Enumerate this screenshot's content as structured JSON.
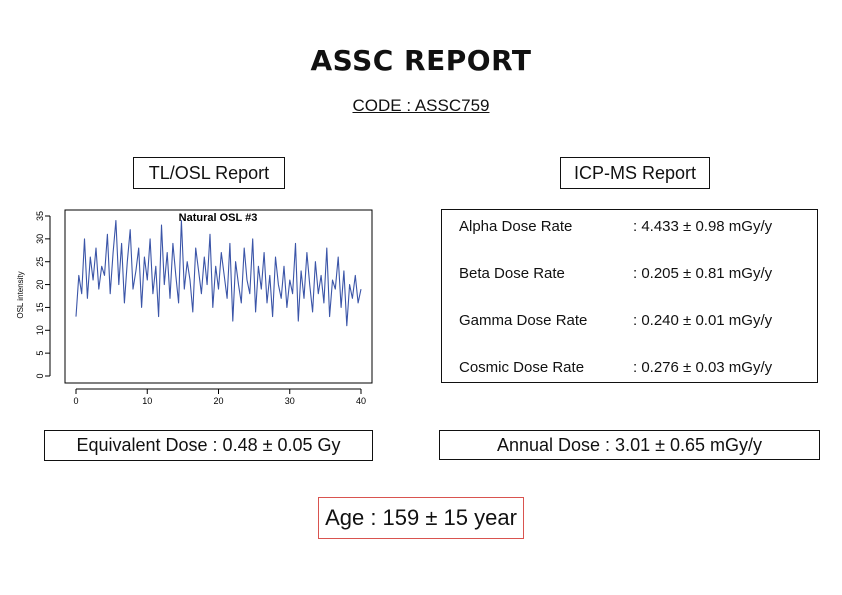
{
  "report": {
    "title": "ASSC REPORT",
    "code": "CODE : ASSC759"
  },
  "tl_osl": {
    "header": "TL/OSL Report",
    "equivalent_dose": "Equivalent Dose : 0.48 ± 0.05 Gy"
  },
  "icp_ms": {
    "header": "ICP-MS Report",
    "rows": [
      {
        "label": "Alpha Dose Rate",
        "value": ": 4.433 ± 0.98 mGy/y"
      },
      {
        "label": "Beta Dose Rate",
        "value": ": 0.205 ± 0.81 mGy/y"
      },
      {
        "label": "Gamma Dose Rate",
        "value": ": 0.240 ± 0.01 mGy/y"
      },
      {
        "label": "Cosmic Dose Rate",
        "value": ": 0.276 ± 0.03 mGy/y"
      }
    ],
    "annual_dose": "Annual Dose : 3.01 ± 0.65 mGy/y"
  },
  "age": "Age : 159 ± 15 year",
  "colors": {
    "line": "#3b55a8",
    "age_border": "#d9534f"
  },
  "chart_data": {
    "type": "line",
    "title": "Natural OSL #3",
    "xlabel": "",
    "ylabel": "OSL intensity",
    "xlim": [
      0,
      40
    ],
    "ylim": [
      0,
      35
    ],
    "xticks": [
      0,
      10,
      20,
      30,
      40
    ],
    "yticks": [
      0,
      5,
      10,
      15,
      20,
      25,
      30,
      35
    ],
    "grid": false,
    "series": [
      {
        "x": [
          0.0,
          0.4,
          0.8,
          1.2,
          1.6,
          2.0,
          2.4,
          2.8,
          3.2,
          3.6,
          4.0,
          4.4,
          4.8,
          5.2,
          5.6,
          6.0,
          6.4,
          6.8,
          7.2,
          7.6,
          8.0,
          8.4,
          8.8,
          9.2,
          9.6,
          10.0,
          10.4,
          10.8,
          11.2,
          11.6,
          12.0,
          12.4,
          12.8,
          13.2,
          13.6,
          14.0,
          14.4,
          14.8,
          15.2,
          15.6,
          16.0,
          16.4,
          16.8,
          17.2,
          17.6,
          18.0,
          18.4,
          18.8,
          19.2,
          19.6,
          20.0,
          20.4,
          20.8,
          21.2,
          21.6,
          22.0,
          22.4,
          22.8,
          23.2,
          23.6,
          24.0,
          24.4,
          24.8,
          25.2,
          25.6,
          26.0,
          26.4,
          26.8,
          27.2,
          27.6,
          28.0,
          28.4,
          28.8,
          29.2,
          29.6,
          30.0,
          30.4,
          30.8,
          31.2,
          31.6,
          32.0,
          32.4,
          32.8,
          33.2,
          33.6,
          34.0,
          34.4,
          34.8,
          35.2,
          35.6,
          36.0,
          36.4,
          36.8,
          37.2,
          37.6,
          38.0,
          38.4,
          38.8,
          39.2,
          39.6,
          40.0
        ],
        "values": [
          13,
          22,
          18,
          30,
          17,
          26,
          21,
          28,
          19,
          24,
          22,
          31,
          18,
          27,
          34,
          20,
          29,
          16,
          25,
          32,
          19,
          23,
          28,
          15,
          26,
          21,
          30,
          18,
          24,
          13,
          33,
          20,
          27,
          17,
          29,
          22,
          16,
          34,
          19,
          25,
          21,
          14,
          28,
          23,
          18,
          26,
          20,
          31,
          15,
          24,
          19,
          27,
          22,
          17,
          29,
          12,
          25,
          20,
          16,
          28,
          21,
          18,
          30,
          14,
          24,
          19,
          27,
          16,
          22,
          13,
          26,
          20,
          17,
          24,
          15,
          21,
          18,
          29,
          12,
          23,
          17,
          27,
          20,
          14,
          25,
          18,
          22,
          16,
          28,
          13,
          21,
          19,
          26,
          15,
          23,
          11,
          20,
          17,
          22,
          16,
          19
        ]
      }
    ]
  }
}
